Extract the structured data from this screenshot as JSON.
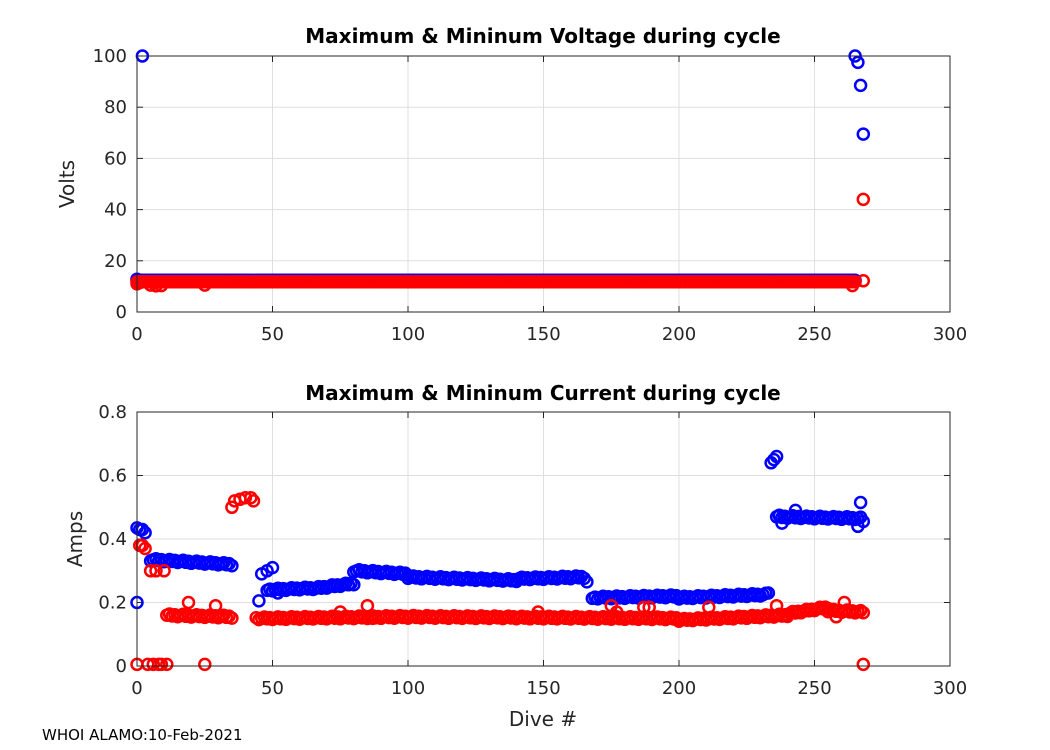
{
  "footer": "WHOI ALAMO:10-Feb-2021",
  "colors": {
    "max": "#0000ff",
    "min": "#ff0000"
  },
  "chart_data": [
    {
      "type": "scatter",
      "title": "Maximum & Mininum Voltage during cycle",
      "xlabel": "",
      "ylabel": "Volts",
      "xlim": [
        0,
        300
      ],
      "ylim": [
        0,
        100
      ],
      "xticks": [
        0,
        50,
        100,
        150,
        200,
        250,
        300
      ],
      "yticks": [
        0,
        20,
        40,
        60,
        80,
        100
      ],
      "grid": true,
      "series": [
        {
          "name": "max",
          "color": "#0000ff",
          "base": 12.4,
          "range": [
            0,
            265
          ],
          "points": [
            [
              0,
              12.8
            ],
            [
              2,
              100
            ],
            [
              265,
              100
            ],
            [
              266,
              97.5
            ],
            [
              267,
              88.5
            ],
            [
              268,
              69.5
            ]
          ]
        },
        {
          "name": "min",
          "color": "#ff0000",
          "base": 11.8,
          "range": [
            0,
            265
          ],
          "points": [
            [
              0,
              11.0
            ],
            [
              1,
              11.5
            ],
            [
              5,
              10.5
            ],
            [
              7,
              10.2
            ],
            [
              9,
              10.3
            ],
            [
              25,
              10.5
            ],
            [
              264,
              10.3
            ],
            [
              268,
              12.2
            ],
            [
              268,
              44.0
            ]
          ]
        }
      ]
    },
    {
      "type": "scatter",
      "title": "Maximum & Mininum Current during cycle",
      "xlabel": "Dive #",
      "ylabel": "Amps",
      "xlim": [
        0,
        300
      ],
      "ylim": [
        0,
        0.8
      ],
      "xticks": [
        0,
        50,
        100,
        150,
        200,
        250,
        300
      ],
      "yticks": [
        0,
        0.2,
        0.4,
        0.6,
        0.8
      ],
      "grid": true,
      "series": [
        {
          "name": "max",
          "color": "#0000ff",
          "segments": [
            [
              5,
              35,
              0.335,
              0.32
            ],
            [
              48,
              65,
              0.24,
              0.245
            ],
            [
              66,
              80,
              0.245,
              0.26
            ],
            [
              80,
              100,
              0.3,
              0.29
            ],
            [
              100,
              140,
              0.28,
              0.27
            ],
            [
              140,
              165,
              0.275,
              0.28
            ],
            [
              168,
              200,
              0.215,
              0.22
            ],
            [
              200,
              232,
              0.215,
              0.225
            ],
            [
              236,
              267,
              0.47,
              0.465
            ]
          ],
          "points": [
            [
              0,
              0.2
            ],
            [
              0,
              0.435
            ],
            [
              1,
              0.43
            ],
            [
              2,
              0.43
            ],
            [
              3,
              0.42
            ],
            [
              45,
              0.205
            ],
            [
              46,
              0.29
            ],
            [
              48,
              0.3
            ],
            [
              50,
              0.31
            ],
            [
              52,
              0.23
            ],
            [
              166,
              0.265
            ],
            [
              233,
              0.23
            ],
            [
              234,
              0.64
            ],
            [
              235,
              0.65
            ],
            [
              236,
              0.66
            ],
            [
              237,
              0.475
            ],
            [
              238,
              0.45
            ],
            [
              243,
              0.49
            ],
            [
              266,
              0.44
            ],
            [
              267,
              0.515
            ],
            [
              268,
              0.455
            ]
          ]
        },
        {
          "name": "min",
          "color": "#ff0000",
          "segments": [
            [
              11,
              35,
              0.16,
              0.155
            ],
            [
              44,
              100,
              0.15,
              0.155
            ],
            [
              100,
              200,
              0.155,
              0.15
            ],
            [
              200,
              240,
              0.145,
              0.16
            ],
            [
              240,
              255,
              0.165,
              0.185
            ],
            [
              255,
              268,
              0.175,
              0.17
            ]
          ],
          "points": [
            [
              0,
              0.005
            ],
            [
              1,
              0.38
            ],
            [
              2,
              0.38
            ],
            [
              3,
              0.37
            ],
            [
              4,
              0.005
            ],
            [
              5,
              0.3
            ],
            [
              6,
              0.005
            ],
            [
              7,
              0.3
            ],
            [
              8,
              0.005
            ],
            [
              9,
              0.005
            ],
            [
              10,
              0.3
            ],
            [
              11,
              0.005
            ],
            [
              19,
              0.2
            ],
            [
              25,
              0.005
            ],
            [
              29,
              0.19
            ],
            [
              35,
              0.5
            ],
            [
              36,
              0.52
            ],
            [
              38,
              0.525
            ],
            [
              40,
              0.53
            ],
            [
              42,
              0.53
            ],
            [
              43,
              0.52
            ],
            [
              75,
              0.17
            ],
            [
              85,
              0.19
            ],
            [
              87,
              0.15
            ],
            [
              148,
              0.17
            ],
            [
              175,
              0.19
            ],
            [
              177,
              0.17
            ],
            [
              187,
              0.185
            ],
            [
              189,
              0.185
            ],
            [
              211,
              0.185
            ],
            [
              236,
              0.19
            ],
            [
              258,
              0.155
            ],
            [
              261,
              0.2
            ],
            [
              268,
              0.005
            ]
          ]
        }
      ]
    }
  ]
}
